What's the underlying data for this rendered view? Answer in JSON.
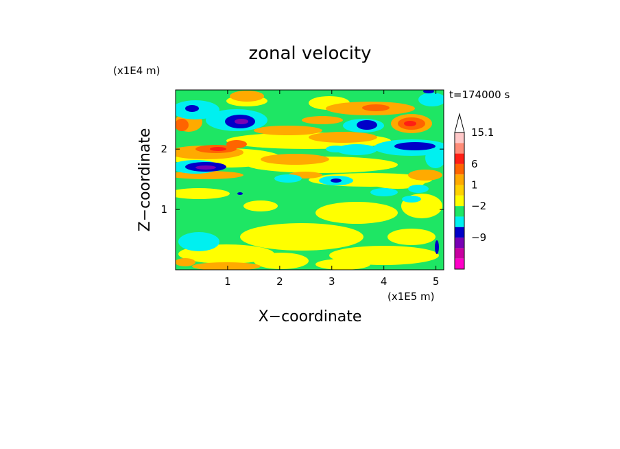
{
  "chart_data": {
    "type": "heatmap",
    "title": "zonal velocity",
    "time_label": "t=174000 s",
    "xlabel": "X−coordinate",
    "ylabel": "Z−coordinate",
    "x_unit": "(x1E5 m)",
    "y_unit": "(x1E4 m)",
    "xlim": [
      0,
      5.15
    ],
    "ylim": [
      0,
      2.98
    ],
    "x_ticks": [
      "1",
      "2",
      "3",
      "4",
      "5"
    ],
    "y_ticks": [
      "1",
      "2"
    ],
    "colorbar": {
      "tick_labels": [
        "15.1",
        "6",
        "1",
        "−2",
        "−9"
      ],
      "levels_high_to_low": [
        15.1,
        12,
        9,
        6,
        3,
        1,
        0,
        -2,
        -4,
        -6,
        -9,
        -12
      ],
      "colors_high_to_low": [
        "#ffc8c8",
        "#ff8c78",
        "#ff1e14",
        "#ff6400",
        "#ffaa00",
        "#ffd200",
        "#ffff00",
        "#1ee664",
        "#00f0f0",
        "#0000c8",
        "#7800b4",
        "#c800a0",
        "#ff00c8"
      ],
      "extend_max_arrow": true
    }
  }
}
